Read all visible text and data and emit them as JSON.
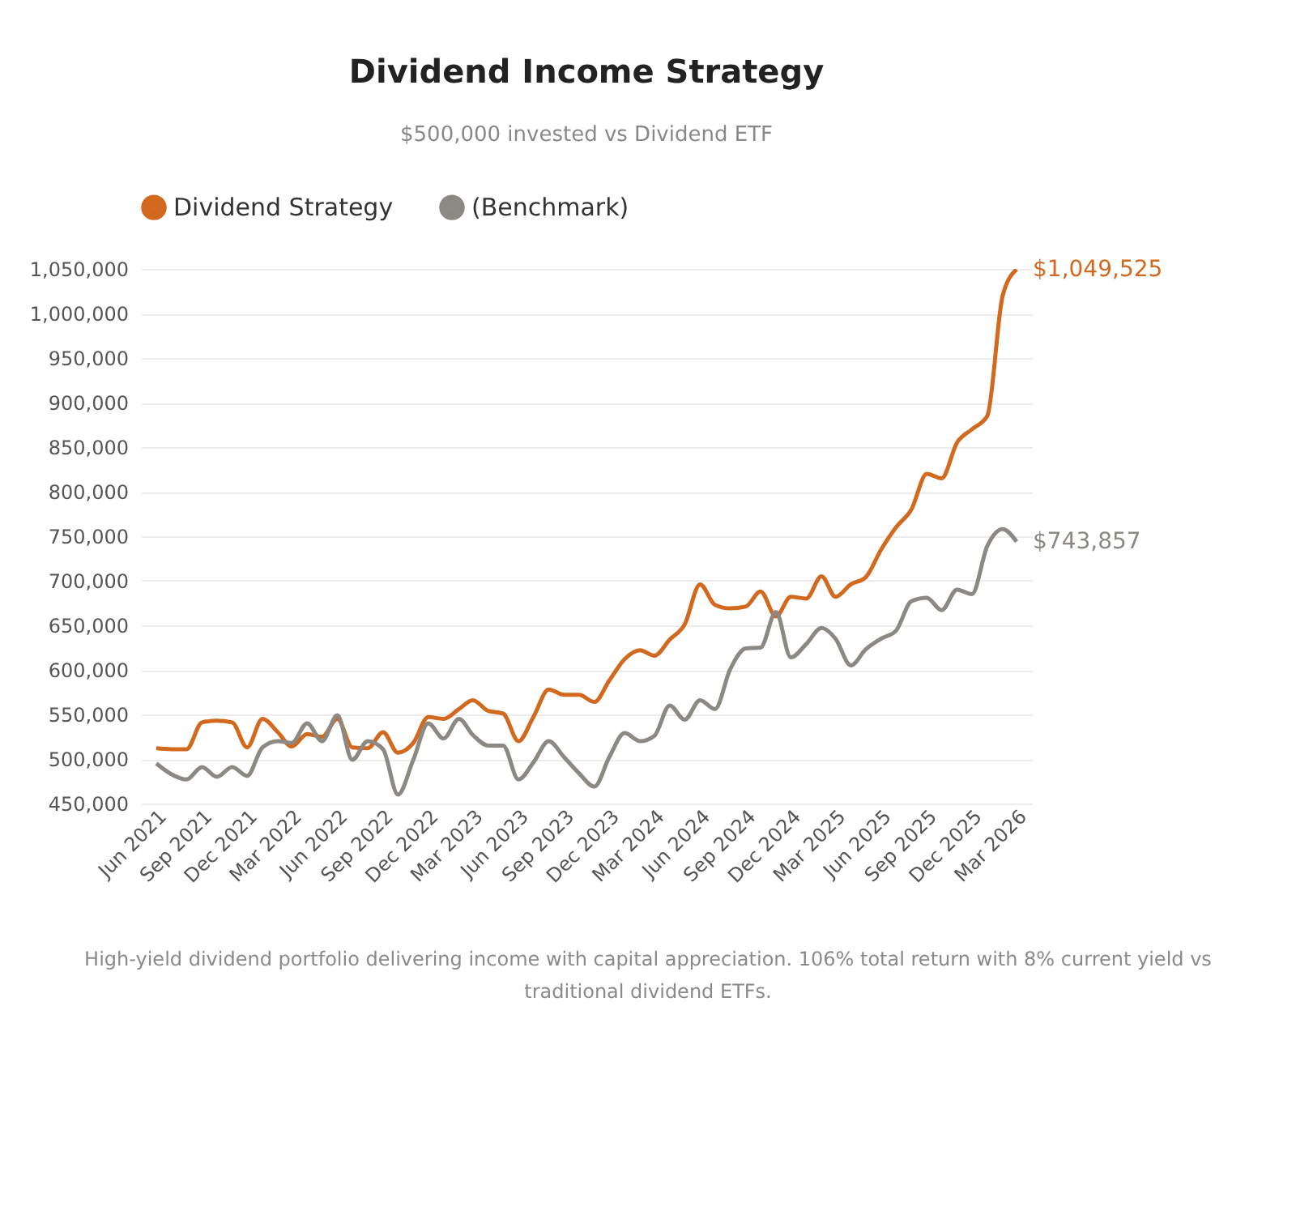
{
  "chart_data": {
    "type": "line",
    "title": "Dividend Income Strategy",
    "subtitle": "$500,000 invested vs Dividend ETF",
    "x": [
      "2021-06",
      "2021-07",
      "2021-08",
      "2021-09",
      "2021-10",
      "2021-11",
      "2021-12",
      "2022-01",
      "2022-02",
      "2022-03",
      "2022-04",
      "2022-05",
      "2022-06",
      "2022-07",
      "2022-08",
      "2022-09",
      "2022-10",
      "2022-11",
      "2022-12",
      "2023-01",
      "2023-02",
      "2023-03",
      "2023-04",
      "2023-05",
      "2023-06",
      "2023-07",
      "2023-08",
      "2023-09",
      "2023-10",
      "2023-11",
      "2023-12",
      "2024-01",
      "2024-02",
      "2024-03",
      "2024-04",
      "2024-05",
      "2024-06",
      "2024-07",
      "2024-08",
      "2024-09",
      "2024-10",
      "2024-11",
      "2024-12",
      "2025-01",
      "2025-02",
      "2025-03",
      "2025-04",
      "2025-05",
      "2025-06",
      "2025-07",
      "2025-08",
      "2025-09",
      "2025-10",
      "2025-11",
      "2025-12",
      "2026-01",
      "2026-02",
      "2026-03"
    ],
    "series": [
      {
        "name": "Dividend Strategy",
        "color": "#d2691e",
        "values": [
          512000,
          511000,
          511000,
          541000,
          543000,
          541000,
          513000,
          545000,
          530000,
          514000,
          528000,
          525000,
          545000,
          513000,
          512000,
          530000,
          507000,
          518000,
          547000,
          545000,
          556000,
          566000,
          554000,
          551000,
          520000,
          547000,
          578000,
          572000,
          572000,
          564000,
          588000,
          612000,
          622000,
          616000,
          634000,
          651000,
          696000,
          673000,
          669000,
          671000,
          688000,
          660000,
          682000,
          680000,
          705000,
          682000,
          696000,
          704000,
          735000,
          760000,
          780000,
          820000,
          815000,
          855000,
          870000,
          885000,
          1020000,
          1049525
        ]
      },
      {
        "name": "(Benchmark)",
        "color": "#8c8884",
        "values": [
          495000,
          483000,
          477000,
          491000,
          480000,
          491000,
          481000,
          513000,
          520000,
          518000,
          540000,
          520000,
          549000,
          499000,
          520000,
          511000,
          460000,
          499000,
          540000,
          523000,
          545000,
          527000,
          515000,
          515000,
          477000,
          496000,
          520000,
          502000,
          484000,
          469000,
          502000,
          529000,
          520000,
          526000,
          560000,
          544000,
          566000,
          556000,
          601000,
          624000,
          625000,
          665000,
          614000,
          629000,
          647000,
          635000,
          605000,
          623000,
          635000,
          644000,
          677000,
          681000,
          667000,
          690000,
          685000,
          739000,
          758000,
          743857
        ]
      }
    ],
    "xlim": [
      "2021-05",
      "2026-04"
    ],
    "xticks": [
      {
        "value": "2021-06",
        "label": "Jun 2021"
      },
      {
        "value": "2021-09",
        "label": "Sep 2021"
      },
      {
        "value": "2021-12",
        "label": "Dec 2021"
      },
      {
        "value": "2022-03",
        "label": "Mar 2022"
      },
      {
        "value": "2022-06",
        "label": "Jun 2022"
      },
      {
        "value": "2022-09",
        "label": "Sep 2022"
      },
      {
        "value": "2022-12",
        "label": "Dec 2022"
      },
      {
        "value": "2023-03",
        "label": "Mar 2023"
      },
      {
        "value": "2023-06",
        "label": "Jun 2023"
      },
      {
        "value": "2023-09",
        "label": "Sep 2023"
      },
      {
        "value": "2023-12",
        "label": "Dec 2023"
      },
      {
        "value": "2024-03",
        "label": "Mar 2024"
      },
      {
        "value": "2024-06",
        "label": "Jun 2024"
      },
      {
        "value": "2024-09",
        "label": "Sep 2024"
      },
      {
        "value": "2024-12",
        "label": "Dec 2024"
      },
      {
        "value": "2025-03",
        "label": "Mar 2025"
      },
      {
        "value": "2025-06",
        "label": "Jun 2025"
      },
      {
        "value": "2025-09",
        "label": "Sep 2025"
      },
      {
        "value": "2025-12",
        "label": "Dec 2025"
      },
      {
        "value": "2026-03",
        "label": "Mar 2026"
      }
    ],
    "ylim": [
      450000,
      1050000
    ],
    "yticks": [
      {
        "value": 450000,
        "label": "450,000"
      },
      {
        "value": 500000,
        "label": "500,000"
      },
      {
        "value": 550000,
        "label": "550,000"
      },
      {
        "value": 600000,
        "label": "600,000"
      },
      {
        "value": 650000,
        "label": "650,000"
      },
      {
        "value": 700000,
        "label": "700,000"
      },
      {
        "value": 750000,
        "label": "750,000"
      },
      {
        "value": 800000,
        "label": "800,000"
      },
      {
        "value": 850000,
        "label": "850,000"
      },
      {
        "value": 900000,
        "label": "900,000"
      },
      {
        "value": 950000,
        "label": "950,000"
      },
      {
        "value": 1000000,
        "label": "1,000,000"
      },
      {
        "value": 1050000,
        "label": "1,050,000"
      }
    ],
    "grid": "y",
    "legend": "top",
    "marker": "none",
    "line_style": "solid",
    "annotations": [
      {
        "text": "$1,049,525",
        "x": "2026-03",
        "y": 1049525
      },
      {
        "text": "$743,857",
        "x": "2026-03",
        "y": 743857
      },
      "High-yield dividend portfolio delivering income with capital appreciation. 106% total return with 8% current yield vs traditional dividend ETFs."
    ]
  }
}
